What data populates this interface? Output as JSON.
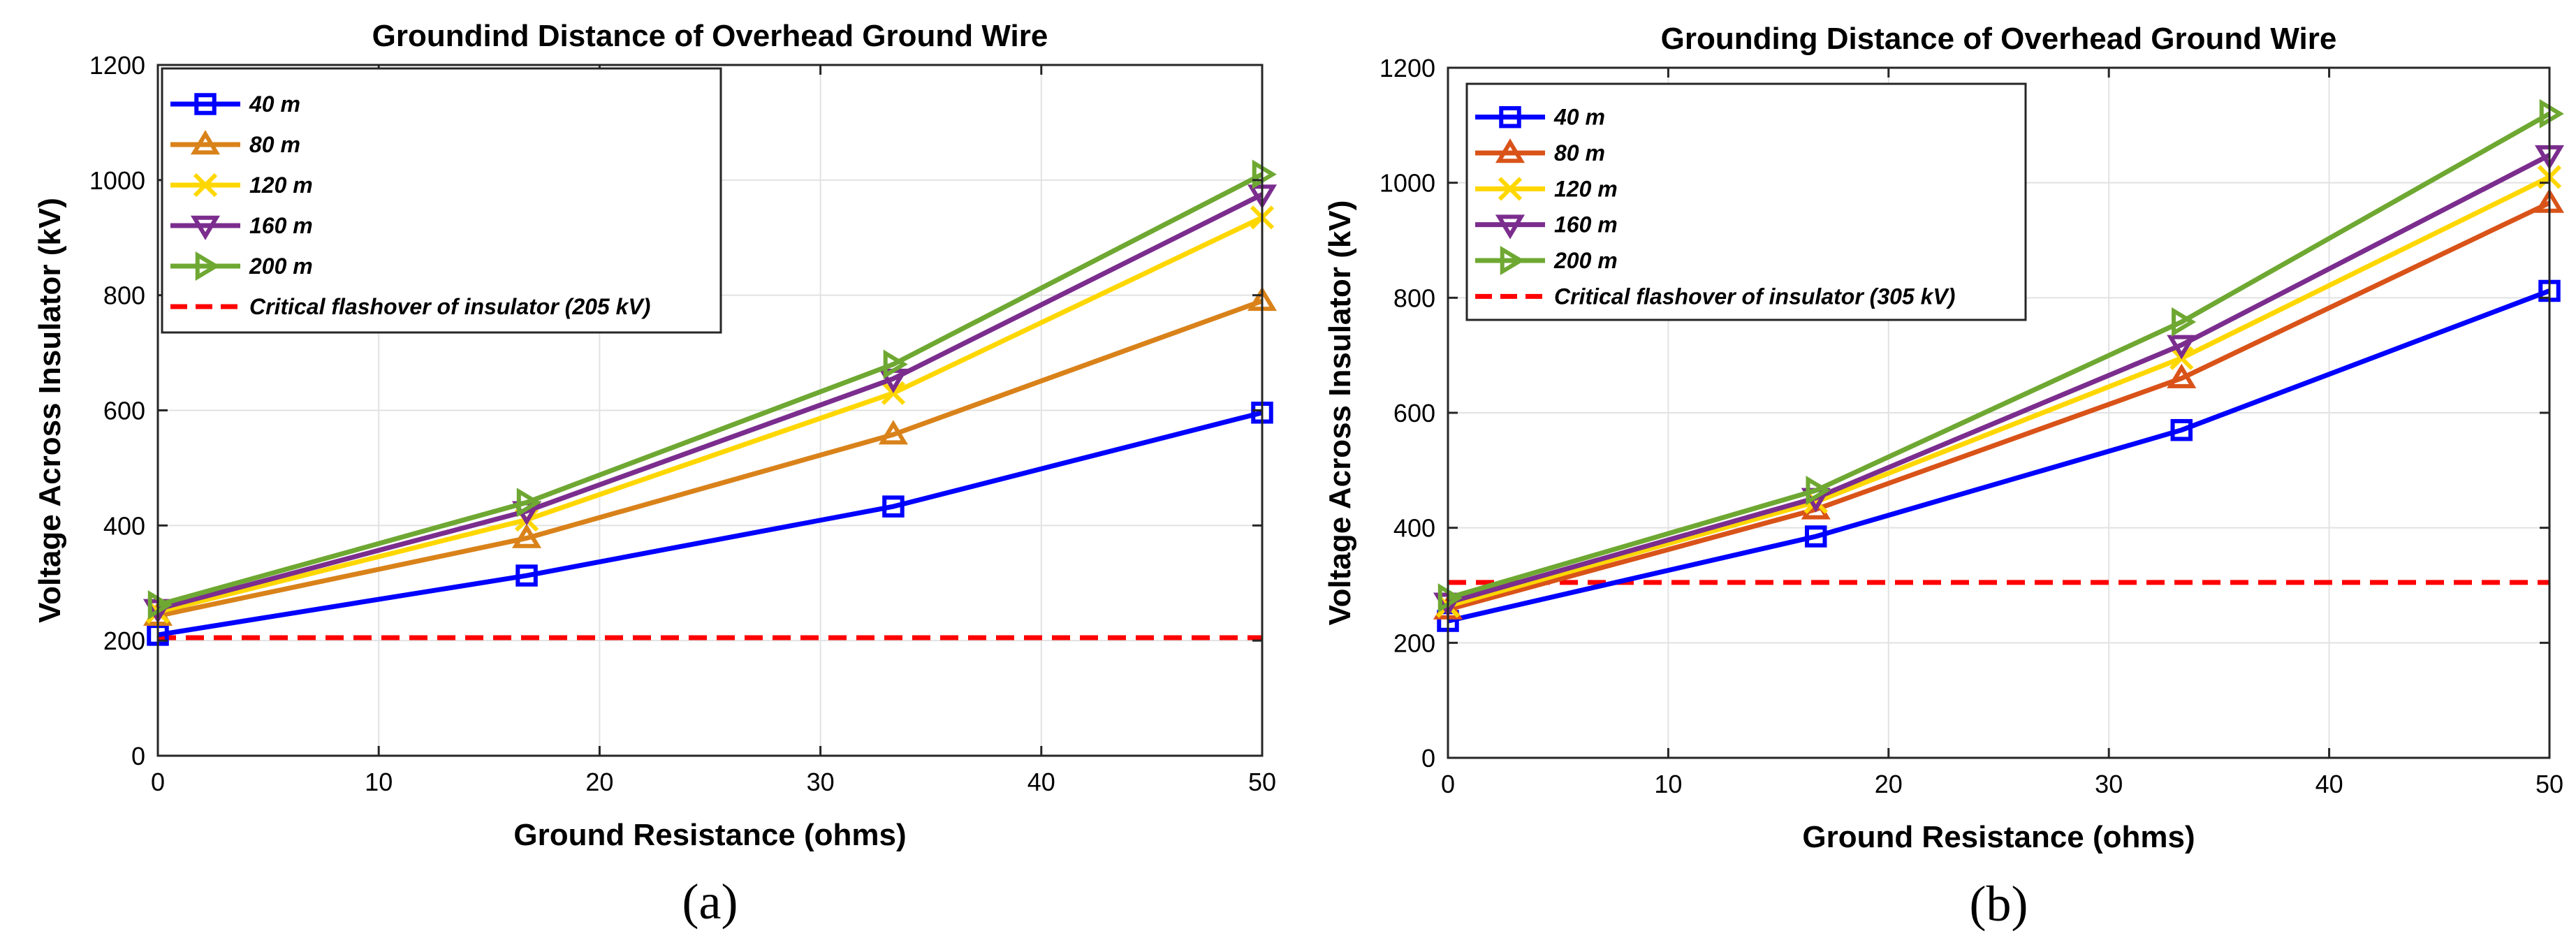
{
  "chart_data": [
    {
      "type": "line",
      "panel_label": "(a)",
      "title": "Groundind Distance of Overhead Ground Wire",
      "xlabel": "Ground Resistance (ohms)",
      "ylabel": "Voltage Across Insulator (kV)",
      "xlim": [
        0,
        50
      ],
      "ylim": [
        0,
        1200
      ],
      "xticks": [
        "0",
        "10",
        "20",
        "30",
        "40",
        "50"
      ],
      "yticks": [
        "0",
        "200",
        "400",
        "600",
        "800",
        "1000",
        "1200"
      ],
      "grid": true,
      "legend_position": "top-left",
      "x": [
        0,
        16.7,
        33.3,
        50
      ],
      "series": [
        {
          "name": "40 m",
          "color": "#0000FF",
          "marker": "square",
          "values": [
            210,
            313,
            433,
            596
          ]
        },
        {
          "name": "80 m",
          "color": "#D9821A",
          "marker": "triangle-up",
          "values": [
            243,
            378,
            558,
            790
          ]
        },
        {
          "name": "120 m",
          "color": "#FFD700",
          "marker": "x",
          "values": [
            250,
            410,
            630,
            935
          ]
        },
        {
          "name": "160 m",
          "color": "#7B2D8E",
          "marker": "triangle-down",
          "values": [
            255,
            425,
            655,
            975
          ]
        },
        {
          "name": "200 m",
          "color": "#6EA832",
          "marker": "triangle-right",
          "values": [
            262,
            440,
            680,
            1010
          ]
        }
      ],
      "reference_line": {
        "name": "Critical flashover of insulator (205 kV)",
        "value": 205,
        "color": "#FF0000",
        "style": "dashed"
      }
    },
    {
      "type": "line",
      "panel_label": "(b)",
      "title": "Grounding Distance of Overhead Ground Wire",
      "xlabel": "Ground Resistance (ohms)",
      "ylabel": "Voltage Across Insulator (kV)",
      "xlim": [
        0,
        50
      ],
      "ylim": [
        0,
        1200
      ],
      "xticks": [
        "0",
        "10",
        "20",
        "30",
        "40",
        "50"
      ],
      "yticks": [
        "0",
        "200",
        "400",
        "600",
        "800",
        "1000",
        "1200"
      ],
      "grid": true,
      "legend_position": "top-left",
      "x": [
        0,
        16.7,
        33.3,
        50
      ],
      "series": [
        {
          "name": "40 m",
          "color": "#0000FF",
          "marker": "square",
          "values": [
            238,
            385,
            570,
            812
          ]
        },
        {
          "name": "80 m",
          "color": "#D95319",
          "marker": "triangle-up",
          "values": [
            258,
            432,
            660,
            965
          ]
        },
        {
          "name": "120 m",
          "color": "#FFD700",
          "marker": "x",
          "values": [
            264,
            445,
            695,
            1010
          ]
        },
        {
          "name": "160 m",
          "color": "#7B2D8E",
          "marker": "triangle-down",
          "values": [
            270,
            452,
            718,
            1048
          ]
        },
        {
          "name": "200 m",
          "color": "#6EA832",
          "marker": "triangle-right",
          "values": [
            278,
            465,
            758,
            1120
          ]
        }
      ],
      "reference_line": {
        "name": "Critical flashover of insulator (305 kV)",
        "value": 305,
        "color": "#FF0000",
        "style": "dashed"
      }
    }
  ]
}
